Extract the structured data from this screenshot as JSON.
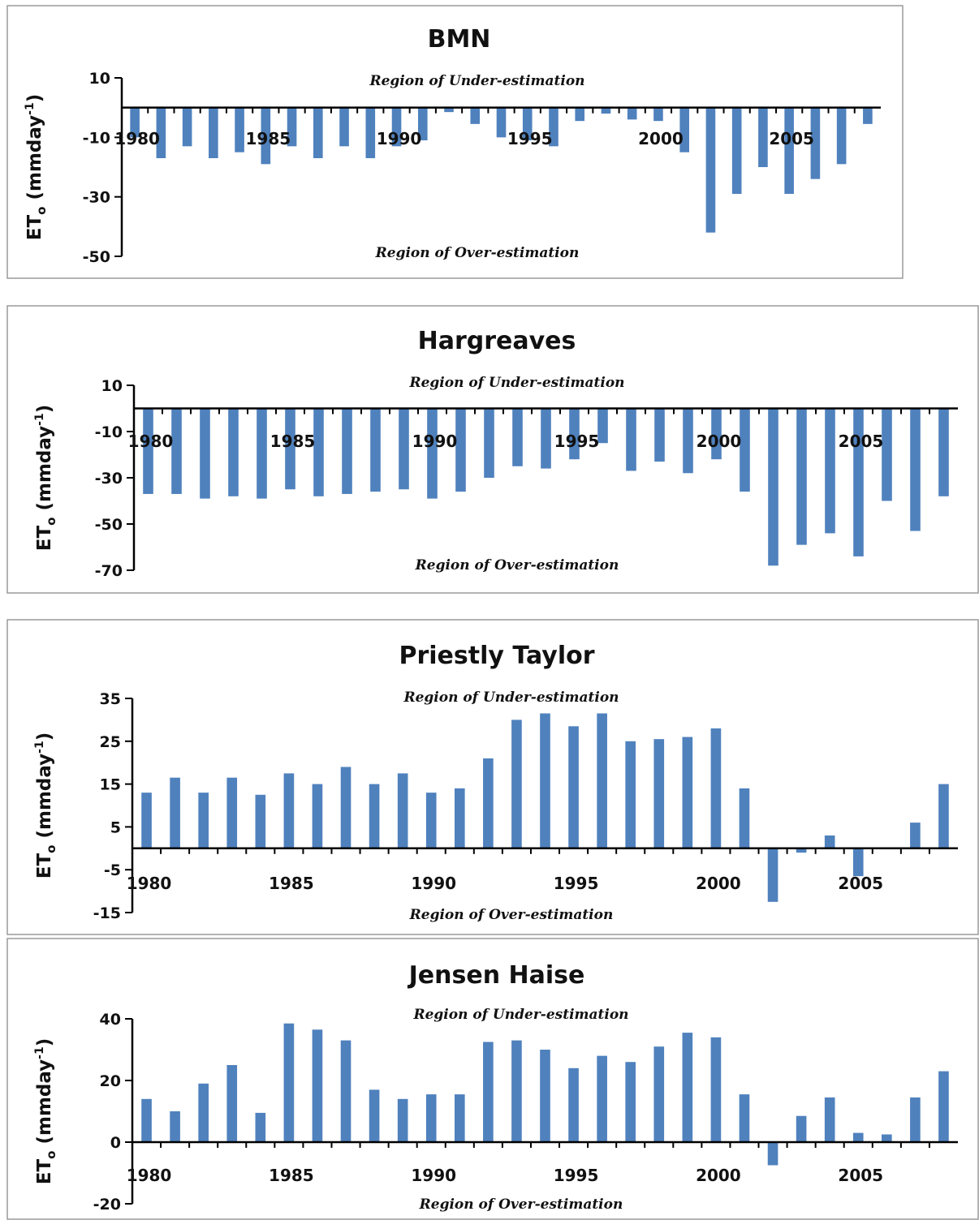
{
  "colors": {
    "bar": "#4f81bd",
    "axis": "#000000",
    "frame": "#9a9a9a"
  },
  "chart_data": [
    {
      "type": "bar",
      "title": "BMN",
      "ylabel_main": "ET",
      "ylabel_sub": "o",
      "ylabel_unit": " (mmday",
      "ylabel_sup": "-1",
      "ylabel_close": ")",
      "region_under": "Region of Under-estimation",
      "region_over": "Region of Over-estimation",
      "ylim": [
        -50,
        10
      ],
      "yticks": [
        10,
        -10,
        -30,
        -50
      ],
      "xlim": [
        1979.5,
        2008.5
      ],
      "xticks": [
        "1980",
        "1985",
        "1990",
        "1995",
        "2000",
        "2005"
      ],
      "years": [
        1980,
        1981,
        1982,
        1983,
        1984,
        1985,
        1986,
        1987,
        1988,
        1989,
        1990,
        1991,
        1992,
        1993,
        1994,
        1995,
        1996,
        1997,
        1998,
        1999,
        2000,
        2001,
        2002,
        2003,
        2004,
        2005,
        2006,
        2007,
        2008
      ],
      "values": [
        -10,
        -17,
        -13,
        -17,
        -15,
        -19,
        -13,
        -17,
        -13,
        -17,
        -13,
        -11,
        -1.5,
        -5.5,
        -10,
        -11,
        -13,
        -4.5,
        -2,
        -4,
        -4.5,
        -15,
        -42,
        -29,
        -20,
        -29,
        -24,
        -19,
        -5.5
      ]
    },
    {
      "type": "bar",
      "title": "Hargreaves",
      "ylabel_main": "ET",
      "ylabel_sub": "o",
      "ylabel_unit": " (mmday",
      "ylabel_sup": "-1",
      "ylabel_close": ")",
      "region_under": "Region of Under-estimation",
      "region_over": "Region of Over-estimation",
      "ylim": [
        -70,
        10
      ],
      "yticks": [
        10,
        -10,
        -30,
        -50,
        -70
      ],
      "xlim": [
        1979.5,
        2008.5
      ],
      "xticks": [
        "1980",
        "1985",
        "1990",
        "1995",
        "2000",
        "2005"
      ],
      "years": [
        1980,
        1981,
        1982,
        1983,
        1984,
        1985,
        1986,
        1987,
        1988,
        1989,
        1990,
        1991,
        1992,
        1993,
        1994,
        1995,
        1996,
        1997,
        1998,
        1999,
        2000,
        2001,
        2002,
        2003,
        2004,
        2005,
        2006,
        2007,
        2008
      ],
      "values": [
        -37,
        -37,
        -39,
        -38,
        -39,
        -35,
        -38,
        -37,
        -36,
        -35,
        -39,
        -36,
        -30,
        -25,
        -26,
        -22,
        -15,
        -27,
        -23,
        -28,
        -22,
        -36,
        -68,
        -59,
        -54,
        -64,
        -40,
        -53,
        -38
      ]
    },
    {
      "type": "bar",
      "title": "Priestly Taylor",
      "ylabel_main": "ET",
      "ylabel_sub": "o",
      "ylabel_unit": " (mmday",
      "ylabel_sup": "-1",
      "ylabel_close": ")",
      "region_under": "Region of Under-estimation",
      "region_over": "Region of Over-estimation",
      "ylim": [
        -15,
        35
      ],
      "yticks": [
        35,
        25,
        15,
        5,
        -5,
        -15
      ],
      "xlim": [
        1979.5,
        2008.5
      ],
      "xticks": [
        "1980",
        "1985",
        "1990",
        "1995",
        "2000",
        "2005"
      ],
      "years": [
        1980,
        1981,
        1982,
        1983,
        1984,
        1985,
        1986,
        1987,
        1988,
        1989,
        1990,
        1991,
        1992,
        1993,
        1994,
        1995,
        1996,
        1997,
        1998,
        1999,
        2000,
        2001,
        2002,
        2003,
        2004,
        2005,
        2006,
        2007,
        2008
      ],
      "values": [
        13,
        16.5,
        13,
        16.5,
        12.5,
        17.5,
        15,
        19,
        15,
        17.5,
        13,
        14,
        21,
        30,
        31.5,
        28.5,
        31.5,
        25,
        25.5,
        26,
        28,
        14,
        -12.5,
        -1,
        3,
        -6.5,
        0,
        6,
        15
      ]
    },
    {
      "type": "bar",
      "title": "Jensen Haise",
      "ylabel_main": "ET",
      "ylabel_sub": "o",
      "ylabel_unit": " (mmday",
      "ylabel_sup": "-1",
      "ylabel_close": ")",
      "region_under": "Region of Under-estimation",
      "region_over": "Region of Over-estimation",
      "ylim": [
        -20,
        40
      ],
      "yticks": [
        40,
        20,
        0,
        -20
      ],
      "xlim": [
        1979.5,
        2008.5
      ],
      "xticks": [
        "1980",
        "1985",
        "1990",
        "1995",
        "2000",
        "2005"
      ],
      "years": [
        1980,
        1981,
        1982,
        1983,
        1984,
        1985,
        1986,
        1987,
        1988,
        1989,
        1990,
        1991,
        1992,
        1993,
        1994,
        1995,
        1996,
        1997,
        1998,
        1999,
        2000,
        2001,
        2002,
        2003,
        2004,
        2005,
        2006,
        2007,
        2008
      ],
      "values": [
        14,
        10,
        19,
        25,
        9.5,
        38.5,
        36.5,
        33,
        17,
        14,
        15.5,
        15.5,
        32.5,
        33,
        30,
        24,
        28,
        26,
        31,
        35.5,
        34,
        15.5,
        -7.5,
        8.5,
        14.5,
        3,
        2.5,
        14.5,
        23
      ]
    }
  ]
}
